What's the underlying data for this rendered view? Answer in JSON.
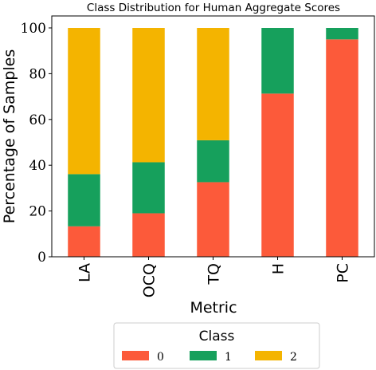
{
  "chart_data": {
    "type": "bar",
    "stacked": true,
    "title": "Class Distribution for Human Aggregate Scores",
    "xlabel": "Metric",
    "ylabel": "Percentage of Samples",
    "ylim": [
      0,
      100
    ],
    "yticks": [
      0,
      20,
      40,
      60,
      80,
      100
    ],
    "categories": [
      "LA",
      "OCQ",
      "TQ",
      "H",
      "PC"
    ],
    "series": [
      {
        "name": "0",
        "color": "#fc5a3a",
        "values": [
          13.3,
          19.0,
          32.6,
          71.3,
          95.0
        ]
      },
      {
        "name": "1",
        "color": "#16a05c",
        "values": [
          22.8,
          22.3,
          18.3,
          28.7,
          5.0
        ]
      },
      {
        "name": "2",
        "color": "#f4b400",
        "values": [
          63.9,
          58.7,
          49.1,
          0.0,
          0.0
        ]
      }
    ],
    "legend": {
      "title": "Class",
      "placement": "bottom-center"
    }
  }
}
